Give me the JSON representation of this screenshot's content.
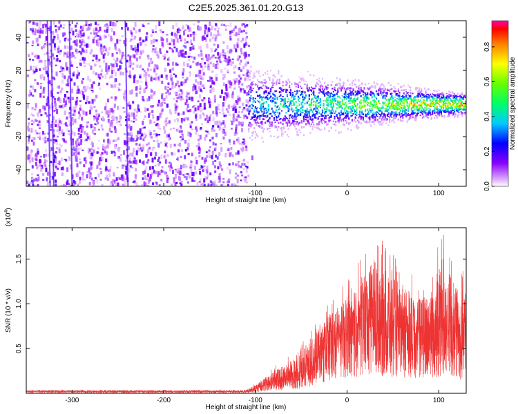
{
  "figure_title": "C2E5.2025.361.01.20.G13",
  "chart_data": [
    {
      "type": "heatmap",
      "title": "C2E5.2025.361.01.20.G13",
      "xlabel": "Height of straight line (km)",
      "ylabel": "Frequency (Hz)",
      "xlim": [
        -350,
        130
      ],
      "ylim": [
        -50,
        50
      ],
      "x_ticks": [
        -300,
        -200,
        -100,
        0,
        100
      ],
      "y_ticks": [
        -40,
        -20,
        0,
        20,
        40
      ],
      "colorbar": {
        "label": "Normalized spectral amplitude",
        "range": [
          0,
          0.95
        ],
        "ticks": [
          0.0,
          0.2,
          0.4,
          0.6,
          0.8
        ]
      },
      "regions": [
        {
          "name": "noise",
          "x_range": [
            -350,
            -108
          ],
          "freq_range": [
            -50,
            50
          ],
          "amplitude": 0.15
        },
        {
          "name": "signal",
          "x_range": [
            -108,
            130
          ],
          "center_freq_hz": 0,
          "width_hz_start": 12,
          "width_hz_end": 4,
          "amplitude_start": 0.4,
          "amplitude_end": 0.9
        }
      ]
    },
    {
      "type": "line",
      "xlabel": "Height of straight line (km)",
      "ylabel": "SNR (10 * v/v)",
      "y_scale_label": "(x10",
      "y_scale_exp": "4",
      "xlim": [
        -350,
        130
      ],
      "ylim": [
        0,
        1.85
      ],
      "x_ticks": [
        -300,
        -200,
        -100,
        0,
        100
      ],
      "y_ticks": [
        0.5,
        1.0,
        1.5
      ],
      "y_tick_labels": [
        "0.5",
        "1.0",
        "1.5"
      ],
      "color": "#ee3333",
      "envelope": {
        "x": [
          -350,
          -110,
          -100,
          -80,
          -60,
          -50,
          -40,
          -30,
          -20,
          -10,
          0,
          10,
          20,
          30,
          40,
          50,
          60,
          70,
          80,
          90,
          100,
          110,
          120,
          130
        ],
        "mean": [
          0.02,
          0.02,
          0.05,
          0.12,
          0.18,
          0.22,
          0.3,
          0.4,
          0.55,
          0.62,
          0.68,
          0.72,
          0.78,
          0.75,
          0.72,
          0.72,
          0.7,
          0.68,
          0.66,
          0.66,
          0.68,
          0.66,
          0.62,
          0.6
        ],
        "max": [
          0.04,
          0.04,
          0.12,
          0.3,
          0.45,
          0.55,
          0.75,
          0.85,
          1.05,
          1.15,
          1.25,
          1.45,
          1.6,
          1.78,
          1.7,
          1.55,
          1.45,
          1.35,
          1.25,
          1.3,
          1.75,
          1.8,
          1.4,
          1.35
        ]
      }
    }
  ]
}
